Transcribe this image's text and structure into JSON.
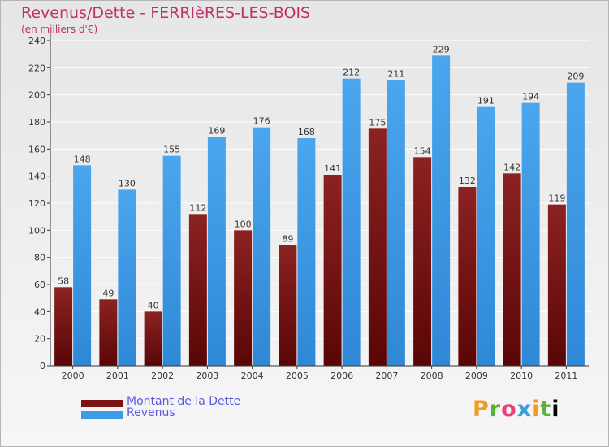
{
  "header": {
    "title": "Revenus/Dette - FERRIèRES-LES-BOIS",
    "subtitle": "(en milliers d'€)"
  },
  "legend": {
    "items": [
      {
        "label": "Montant de la Dette",
        "color": "#7a1414"
      },
      {
        "label": "Revenus",
        "color": "#3f9be6"
      }
    ]
  },
  "logo": {
    "letters": [
      "P",
      "r",
      "o",
      "x",
      "i",
      "t",
      "i"
    ]
  },
  "colors": {
    "debt": "#7a1414",
    "revenue": "#3f9be6",
    "axis": "#333333",
    "grid": "#ffffff",
    "label": "#333333"
  },
  "chart_data": {
    "type": "bar",
    "categories": [
      "2000",
      "2001",
      "2002",
      "2003",
      "2004",
      "2005",
      "2006",
      "2007",
      "2008",
      "2009",
      "2010",
      "2011"
    ],
    "series": [
      {
        "name": "Montant de la Dette",
        "values": [
          58,
          49,
          40,
          112,
          100,
          89,
          141,
          175,
          154,
          132,
          142,
          119
        ]
      },
      {
        "name": "Revenus",
        "values": [
          148,
          130,
          155,
          169,
          176,
          168,
          212,
          211,
          229,
          191,
          194,
          209
        ]
      }
    ],
    "yticks": [
      0,
      20,
      40,
      60,
      80,
      100,
      120,
      140,
      160,
      180,
      200,
      220,
      240
    ],
    "ylim": [
      0,
      240
    ],
    "grid": true,
    "legend_position": "bottom-left"
  }
}
